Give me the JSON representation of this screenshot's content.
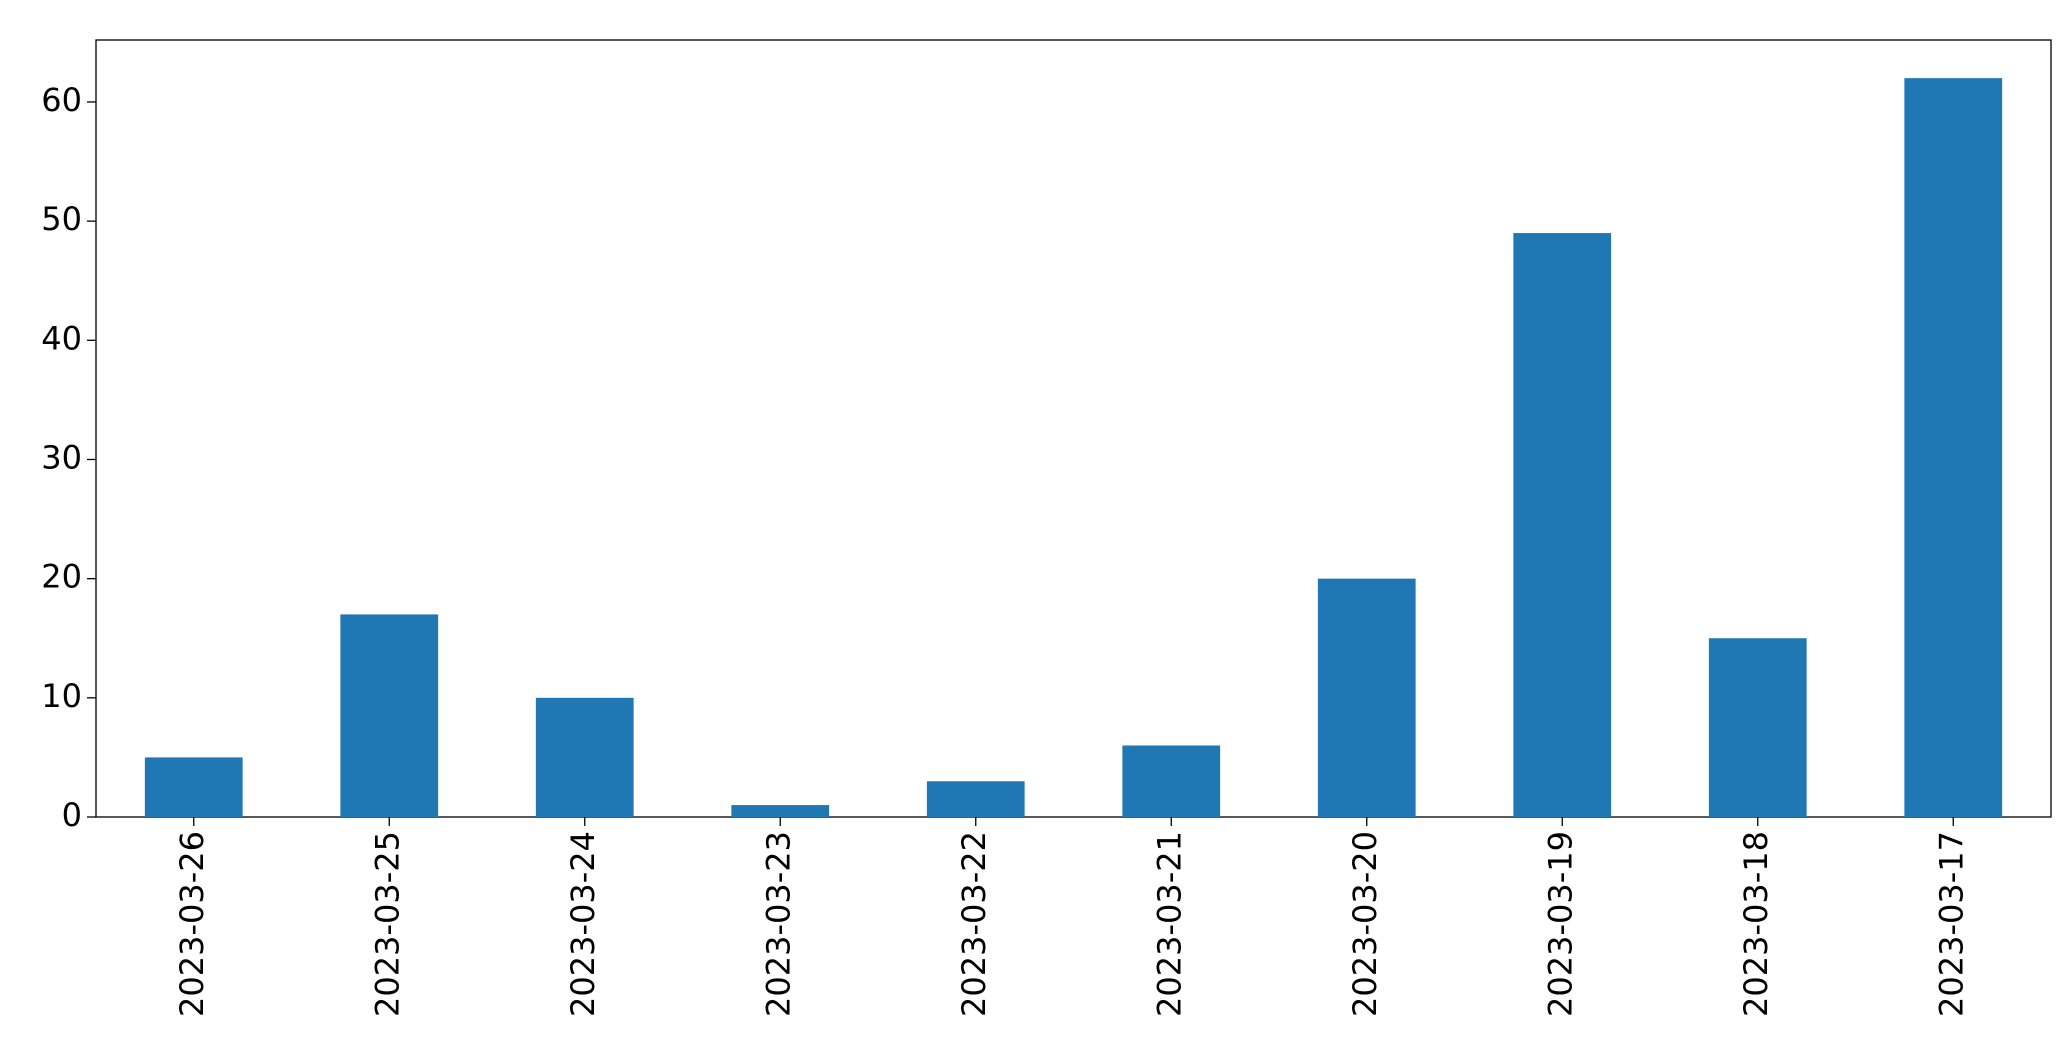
{
  "chart_data": {
    "type": "bar",
    "categories": [
      "2023-03-26",
      "2023-03-25",
      "2023-03-24",
      "2023-03-23",
      "2023-03-22",
      "2023-03-21",
      "2023-03-20",
      "2023-03-19",
      "2023-03-18",
      "2023-03-17"
    ],
    "values": [
      5,
      17,
      10,
      1,
      3,
      6,
      20,
      49,
      15,
      62
    ],
    "color": "#1f77b4",
    "ylim": [
      0,
      65.2
    ],
    "yticks": [
      0,
      10,
      20,
      30,
      40,
      50,
      60
    ],
    "grid": false
  }
}
